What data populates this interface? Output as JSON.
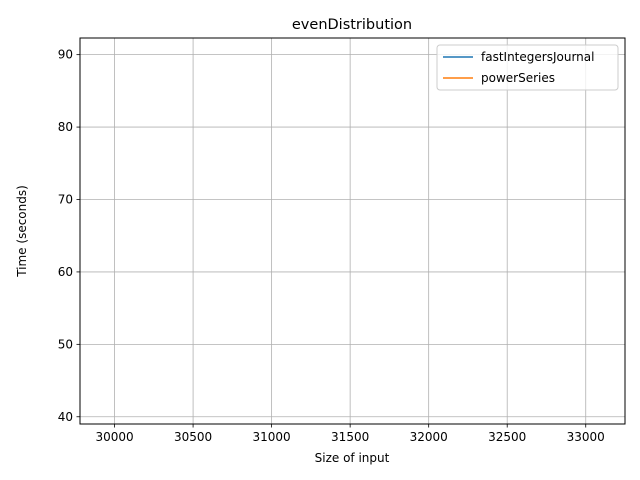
{
  "chart_data": {
    "type": "line",
    "title": "evenDistribution",
    "xlabel": "Size of input",
    "ylabel": "Time (seconds)",
    "xlim": [
      29780,
      33250
    ],
    "ylim": [
      39,
      92.3
    ],
    "x_ticks": [
      30000,
      30500,
      31000,
      31500,
      32000,
      32500,
      33000
    ],
    "y_ticks": [
      40,
      50,
      60,
      70,
      80,
      90
    ],
    "grid": true,
    "legend_position": "top-right",
    "series": [
      {
        "name": "fastIntegersJournal",
        "color": "#1f77b4",
        "x": [],
        "y": []
      },
      {
        "name": "powerSeries",
        "color": "#ff7f0e",
        "x": [],
        "y": []
      }
    ]
  }
}
